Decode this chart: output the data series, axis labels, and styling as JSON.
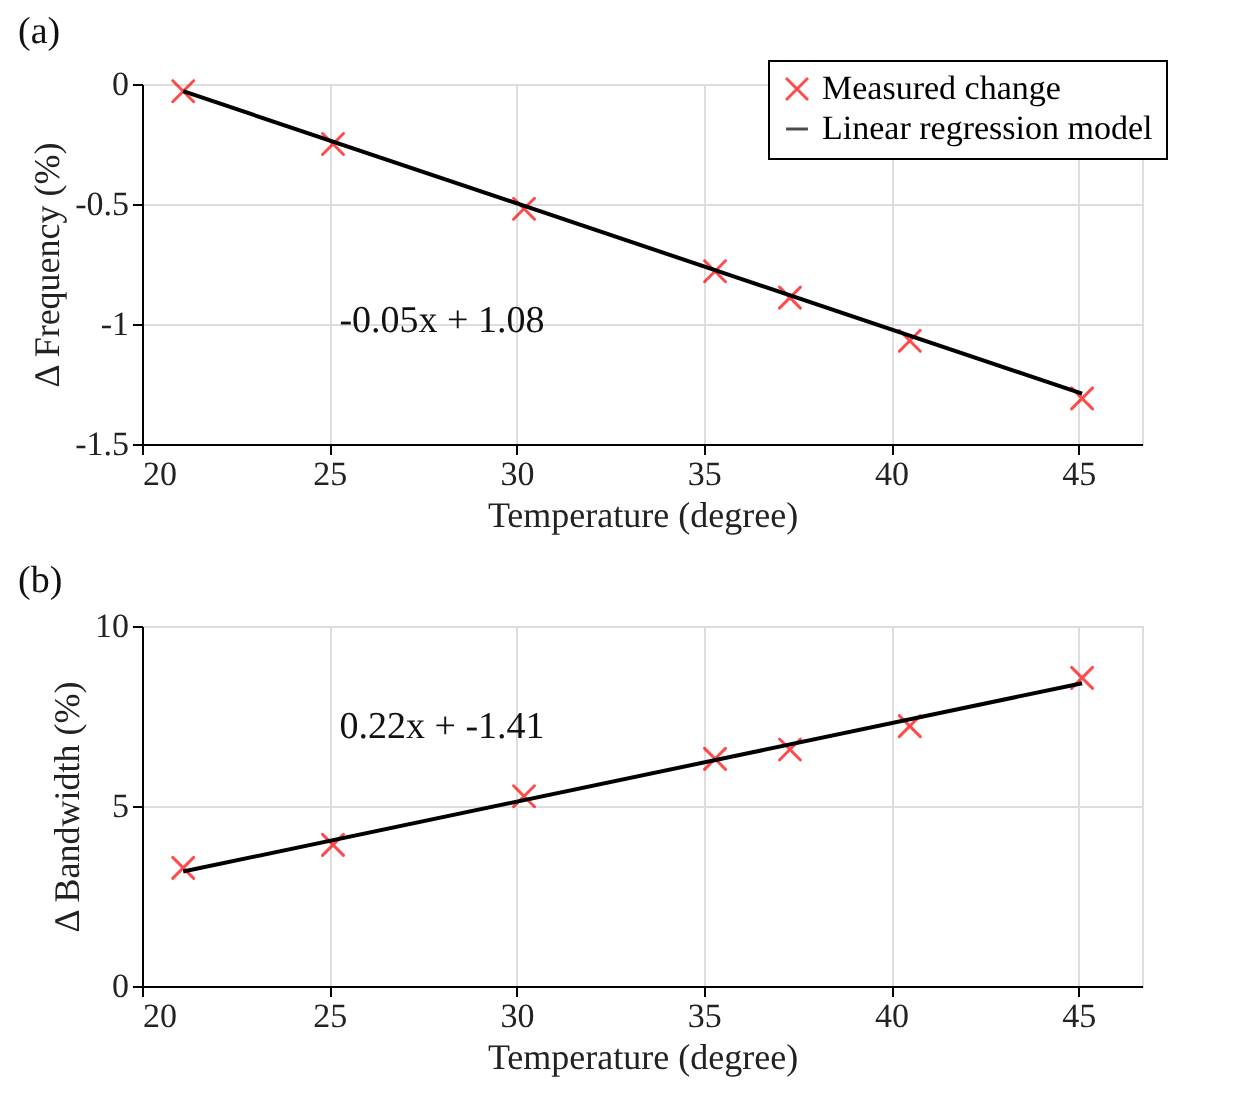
{
  "chart_data": [
    {
      "type": "scatter",
      "title": "(a)",
      "xlabel": "Temperature (degree)",
      "ylabel": "Δ Frequency (%)",
      "xlim": [
        20,
        46.7
      ],
      "xticks": [
        20,
        25,
        30,
        35,
        40,
        45
      ],
      "ylim": [
        -1.5,
        0
      ],
      "yticks": [
        -1.5,
        -1,
        -0.5,
        0
      ],
      "grid": true,
      "legend": "top right",
      "series": [
        {
          "name": "Measured change",
          "type": "scatter",
          "marker": "cross",
          "color": "#ff0000",
          "x": [
            21.1,
            25.1,
            30.2,
            35.3,
            37.3,
            40.5,
            45.1
          ],
          "values": [
            -0.03,
            -0.25,
            -0.52,
            -0.78,
            -0.89,
            -1.07,
            -1.31
          ]
        },
        {
          "name": "Linear regression model",
          "type": "line",
          "line_style": "solid",
          "color": "#000000",
          "x": [
            21.1,
            45.1
          ],
          "values": [
            -0.03,
            -1.29
          ]
        }
      ],
      "annotations": [
        "-0.05x + 1.08"
      ]
    },
    {
      "type": "scatter",
      "title": "(b)",
      "xlabel": "Temperature (degree)",
      "ylabel": "Δ Bandwidth (%)",
      "xlim": [
        20,
        46.7
      ],
      "xticks": [
        20,
        25,
        30,
        35,
        40,
        45
      ],
      "ylim": [
        0,
        10
      ],
      "yticks": [
        0,
        5,
        10
      ],
      "grid": true,
      "series": [
        {
          "type": "scatter",
          "marker": "cross",
          "color": "#ff0000",
          "x": [
            21.1,
            25.1,
            30.2,
            35.3,
            37.3,
            40.5,
            45.1
          ],
          "values": [
            3.28,
            3.92,
            5.27,
            6.31,
            6.57,
            7.22,
            8.56
          ]
        },
        {
          "type": "line",
          "line_style": "solid",
          "color": "#000000",
          "x": [
            21.1,
            45.1
          ],
          "values": [
            3.18,
            8.41
          ]
        }
      ],
      "annotations": [
        "0.22x + -1.41"
      ]
    }
  ]
}
